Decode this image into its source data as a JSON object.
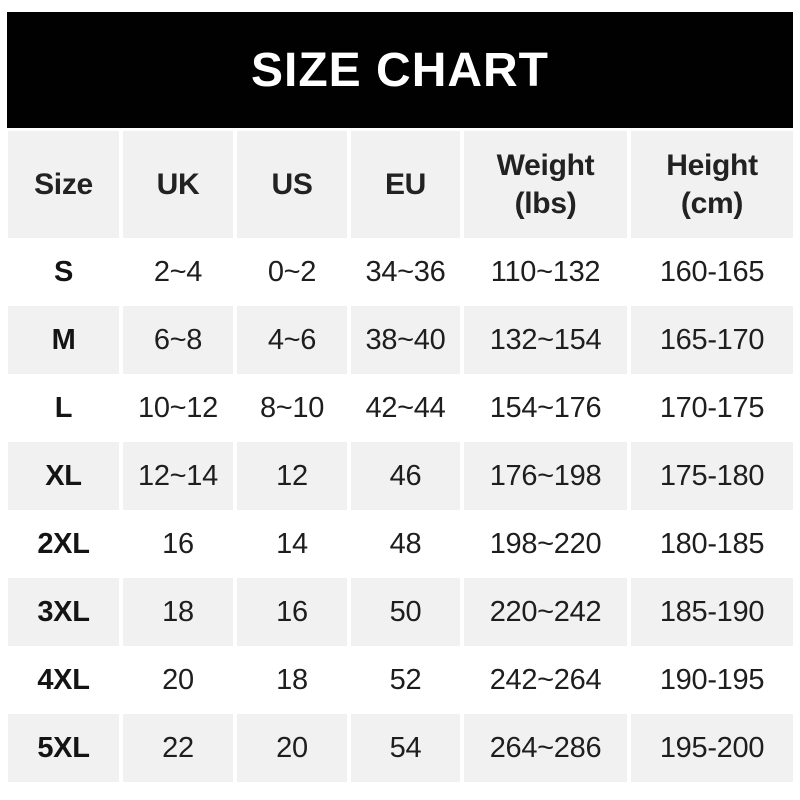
{
  "title": "SIZE CHART",
  "colors": {
    "banner_bg": "#010101",
    "banner_text": "#ffffff",
    "stripe_gray": "#f1f1f1",
    "stripe_white": "#ffffff",
    "text": "#1e1e1e"
  },
  "header": {
    "cells": [
      {
        "text": "Size"
      },
      {
        "text": "UK"
      },
      {
        "text": "US"
      },
      {
        "text": "EU"
      },
      {
        "text": "Weight\n(lbs)"
      },
      {
        "text": "Height\n(cm)"
      }
    ]
  },
  "chart_data": {
    "type": "table",
    "title": "SIZE CHART",
    "columns": [
      "Size",
      "UK",
      "US",
      "EU",
      "Weight (lbs)",
      "Height (cm)"
    ],
    "rows": [
      [
        "S",
        "2~4",
        "0~2",
        "34~36",
        "110~132",
        "160-165"
      ],
      [
        "M",
        "6~8",
        "4~6",
        "38~40",
        "132~154",
        "165-170"
      ],
      [
        "L",
        "10~12",
        "8~10",
        "42~44",
        "154~176",
        "170-175"
      ],
      [
        "XL",
        "12~14",
        "12",
        "46",
        "176~198",
        "175-180"
      ],
      [
        "2XL",
        "16",
        "14",
        "48",
        "198~220",
        "180-185"
      ],
      [
        "3XL",
        "18",
        "16",
        "50",
        "220~242",
        "185-190"
      ],
      [
        "4XL",
        "20",
        "18",
        "52",
        "242~264",
        "190-195"
      ],
      [
        "5XL",
        "22",
        "20",
        "54",
        "264~286",
        "195-200"
      ]
    ],
    "layout": {
      "row_striping": [
        "white",
        "gray",
        "white",
        "gray",
        "white",
        "gray",
        "white",
        "gray"
      ],
      "header_bg": "gray",
      "grid": "off"
    }
  }
}
